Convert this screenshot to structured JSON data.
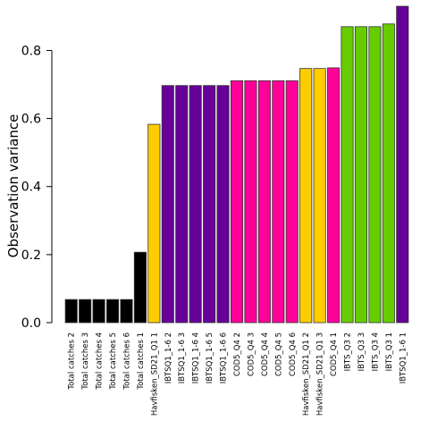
{
  "chart_data": {
    "type": "bar",
    "title": "",
    "xlabel": "",
    "ylabel": "Observation variance",
    "ylim": [
      0,
      0.93
    ],
    "yticks": [
      0.0,
      0.2,
      0.4,
      0.6,
      0.8
    ],
    "ytick_labels": [
      "0.0",
      "0.2",
      "0.4",
      "0.6",
      "0.8"
    ],
    "grid": false,
    "legend": "none",
    "categories": [
      "Total catches 2",
      "Total catches 3",
      "Total catches 4",
      "Total catches 5",
      "Total catches 6",
      "Total catches 1",
      "Havfisken_SD21_Q1 1",
      "IBTSQ1_1-6 2",
      "IBTSQ1_1-6 3",
      "IBTSQ1_1-6 4",
      "IBTSQ1_1-6 5",
      "IBTSQ1_1-6 6",
      "COD5_Q4 2",
      "COD5_Q4 3",
      "COD5_Q4 4",
      "COD5_Q4 5",
      "COD5_Q4 6",
      "Havfisken_SD21_Q1 2",
      "Havfisken_SD21_Q1 3",
      "COD5_Q4 1",
      "IBTS_Q3 2",
      "IBTS_Q3 3",
      "IBTS_Q3 4",
      "IBTS_Q3 1",
      "IBTSQ1_1-6 1"
    ],
    "values": [
      0.068,
      0.068,
      0.068,
      0.068,
      0.068,
      0.207,
      0.583,
      0.697,
      0.697,
      0.697,
      0.697,
      0.697,
      0.711,
      0.711,
      0.711,
      0.711,
      0.711,
      0.747,
      0.747,
      0.749,
      0.87,
      0.87,
      0.87,
      0.878,
      0.93
    ],
    "bar_colors": [
      "#000000",
      "#000000",
      "#000000",
      "#000000",
      "#000000",
      "#000000",
      "#ffcc00",
      "#660099",
      "#660099",
      "#660099",
      "#660099",
      "#660099",
      "#ff0099",
      "#ff0099",
      "#ff0099",
      "#ff0099",
      "#ff0099",
      "#ffcc00",
      "#ffcc00",
      "#ff0099",
      "#66cc00",
      "#66cc00",
      "#66cc00",
      "#66cc00",
      "#660099"
    ],
    "bar_edge_color": "#333333"
  }
}
